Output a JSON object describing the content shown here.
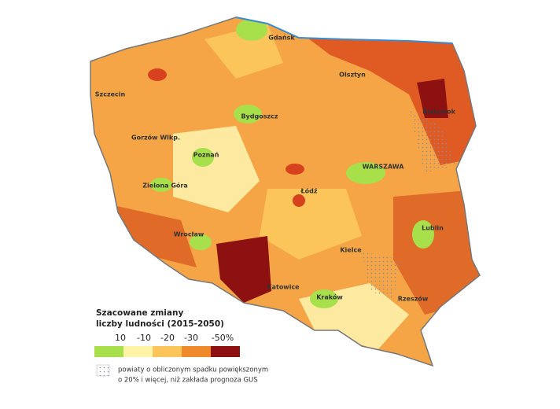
{
  "legend": {
    "title": [
      "Szacowane zmiany",
      "liczby ludności (2015-2050)"
    ],
    "items": [
      {
        "label": "10",
        "color": "#a8e04c"
      },
      {
        "label": "-10",
        "color": "#fff3a6"
      },
      {
        "label": "-20",
        "color": "#fbc55a"
      },
      {
        "label": "-30",
        "color": "#f0892a"
      },
      {
        "label": "-50%",
        "color": "#8e1112"
      }
    ],
    "note": [
      "powiaty o obliczonym spadku powiększonym",
      "o 20% i więcej, niż zakłada prognoza GUS"
    ]
  },
  "cities": [
    "Gdańsk",
    "Olsztyn",
    "Szczecin",
    "Białystok",
    "Bydgoszcz",
    "Gorzów Wlkp.",
    "Poznań",
    "WARSZAWA",
    "Zielona Góra",
    "Łódź",
    "Lublin",
    "Wrocław",
    "Kielce",
    "Katowice",
    "Kraków",
    "Rzeszów"
  ]
}
